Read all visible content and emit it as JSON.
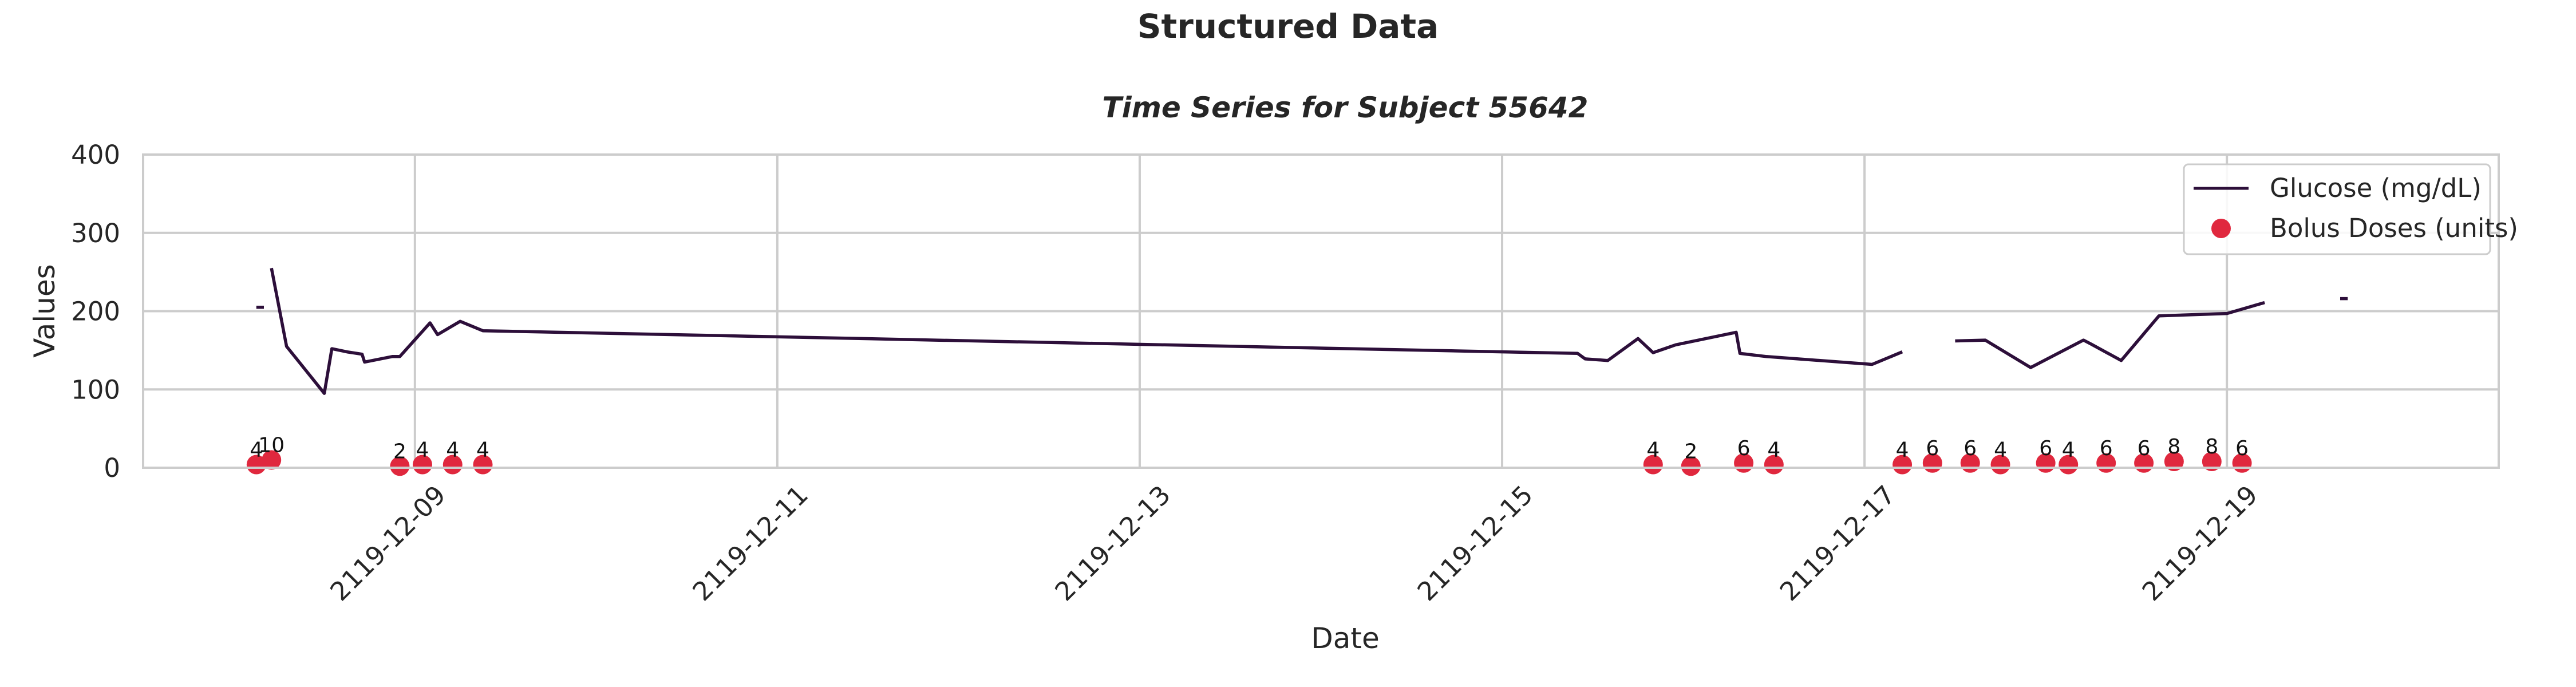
{
  "figure": {
    "suptitle": "Structured Data"
  },
  "chart_data": {
    "type": "line",
    "title": "Time Series for Subject 55642",
    "xlabel": "Date",
    "ylabel": "Values",
    "ylim": [
      0,
      400
    ],
    "xlim": [
      "2119-12-07 12:00",
      "2119-12-20 12:00"
    ],
    "yticks": [
      0,
      100,
      200,
      300,
      400
    ],
    "xticks": [
      "2119-12-09",
      "2119-12-11",
      "2119-12-13",
      "2119-12-15",
      "2119-12-17",
      "2119-12-19"
    ],
    "grid": true,
    "legend_position": "top-right",
    "colors": {
      "glucose": "#2d0f3a",
      "bolus": "#e0283e"
    },
    "series": [
      {
        "name": "Glucose (mg/dL)",
        "kind": "line",
        "segments": [
          [
            [
              "2119-12-08 03:00",
              205
            ],
            [
              "2119-12-08 04:00",
              205
            ]
          ],
          [
            [
              "2119-12-08 05:00",
              255
            ],
            [
              "2119-12-08 07:00",
              155
            ],
            [
              "2119-12-08 12:00",
              95
            ],
            [
              "2119-12-08 13:00",
              152
            ],
            [
              "2119-12-08 15:00",
              148
            ],
            [
              "2119-12-08 17:00",
              145
            ],
            [
              "2119-12-08 17:20",
              135
            ],
            [
              "2119-12-08 21:00",
              142
            ],
            [
              "2119-12-08 22:00",
              142
            ],
            [
              "2119-12-09 02:00",
              185
            ],
            [
              "2119-12-09 03:00",
              170
            ],
            [
              "2119-12-09 06:00",
              187
            ],
            [
              "2119-12-09 09:00",
              175
            ],
            [
              "2119-12-15 10:00",
              146
            ],
            [
              "2119-12-15 11:00",
              139
            ],
            [
              "2119-12-15 14:00",
              137
            ],
            [
              "2119-12-15 18:00",
              165
            ],
            [
              "2119-12-15 20:00",
              147
            ],
            [
              "2119-12-15 23:00",
              157
            ],
            [
              "2119-12-16 07:00",
              173
            ],
            [
              "2119-12-16 07:30",
              146
            ],
            [
              "2119-12-16 11:00",
              142
            ],
            [
              "2119-12-17 01:00",
              132
            ],
            [
              "2119-12-17 05:00",
              148
            ]
          ],
          [
            [
              "2119-12-17 12:00",
              162
            ],
            [
              "2119-12-17 16:00",
              163
            ],
            [
              "2119-12-17 22:00",
              128
            ],
            [
              "2119-12-18 05:00",
              163
            ],
            [
              "2119-12-18 06:00",
              158
            ],
            [
              "2119-12-18 10:00",
              137
            ],
            [
              "2119-12-18 15:00",
              194
            ],
            [
              "2119-12-18 21:00",
              196
            ],
            [
              "2119-12-19 00:00",
              197
            ],
            [
              "2119-12-19 05:00",
              211
            ]
          ],
          [
            [
              "2119-12-19 15:00",
              216
            ],
            [
              "2119-12-19 16:00",
              216
            ]
          ]
        ]
      },
      {
        "name": "Bolus Doses (units)",
        "kind": "scatter",
        "points": [
          [
            "2119-12-08 03:00",
            4,
            "4"
          ],
          [
            "2119-12-08 05:00",
            10,
            "10"
          ],
          [
            "2119-12-08 22:00",
            2,
            "2"
          ],
          [
            "2119-12-09 01:00",
            4,
            "4"
          ],
          [
            "2119-12-09 05:00",
            4,
            "4"
          ],
          [
            "2119-12-09 09:00",
            4,
            "4"
          ],
          [
            "2119-12-15 20:00",
            4,
            "4"
          ],
          [
            "2119-12-16 01:00",
            2,
            "2"
          ],
          [
            "2119-12-16 08:00",
            6,
            "6"
          ],
          [
            "2119-12-16 12:00",
            4,
            "4"
          ],
          [
            "2119-12-17 05:00",
            4,
            "4"
          ],
          [
            "2119-12-17 09:00",
            6,
            "6"
          ],
          [
            "2119-12-17 14:00",
            6,
            "6"
          ],
          [
            "2119-12-17 18:00",
            4,
            "4"
          ],
          [
            "2119-12-18 00:00",
            6,
            "6"
          ],
          [
            "2119-12-18 03:00",
            4,
            "4"
          ],
          [
            "2119-12-18 08:00",
            6,
            "6"
          ],
          [
            "2119-12-18 13:00",
            6,
            "6"
          ],
          [
            "2119-12-18 17:00",
            8,
            "8"
          ],
          [
            "2119-12-18 22:00",
            8,
            "8"
          ],
          [
            "2119-12-19 02:00",
            6,
            "6"
          ]
        ]
      }
    ]
  }
}
